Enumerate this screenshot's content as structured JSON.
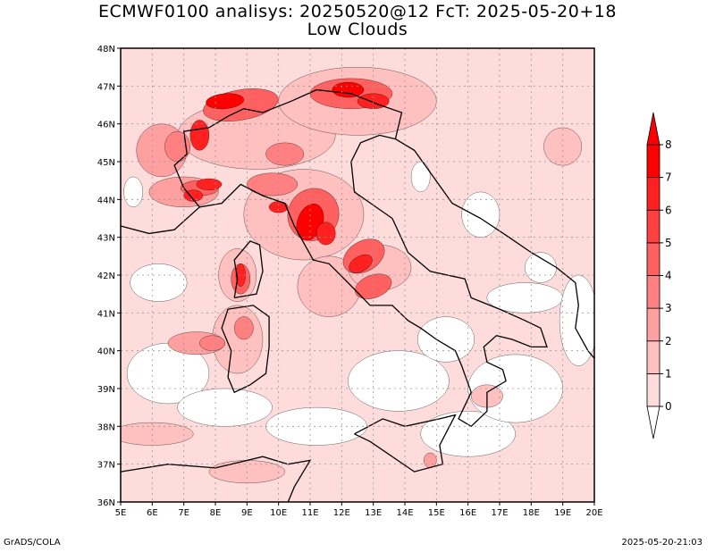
{
  "title": {
    "line1": "ECMWF0100 analisys: 20250520@12 FcT: 2025-05-20+18",
    "line2": "Low Clouds"
  },
  "footer": {
    "left": "GrADS/COLA",
    "right": "2025-05-20-21:03"
  },
  "axes": {
    "lon_labels": [
      "5E",
      "6E",
      "7E",
      "8E",
      "9E",
      "10E",
      "11E",
      "12E",
      "13E",
      "14E",
      "15E",
      "16E",
      "17E",
      "18E",
      "19E",
      "20E"
    ],
    "lat_labels": [
      "36N",
      "37N",
      "38N",
      "39N",
      "40N",
      "41N",
      "42N",
      "43N",
      "44N",
      "45N",
      "46N",
      "47N",
      "48N"
    ],
    "lon_range": [
      5,
      20
    ],
    "lat_range": [
      36,
      48
    ],
    "grid": true
  },
  "colorbar": {
    "labels": [
      "0",
      "1",
      "2",
      "3",
      "4",
      "5",
      "6",
      "7",
      "8"
    ],
    "colors": [
      "#ffffff",
      "#ffdcdc",
      "#ffc0c0",
      "#ffa0a0",
      "#ff8080",
      "#ff6060",
      "#ff4040",
      "#ff2020",
      "#ff0000"
    ]
  },
  "colors": {
    "land_outline": "#000000",
    "grid": "#999999"
  }
}
